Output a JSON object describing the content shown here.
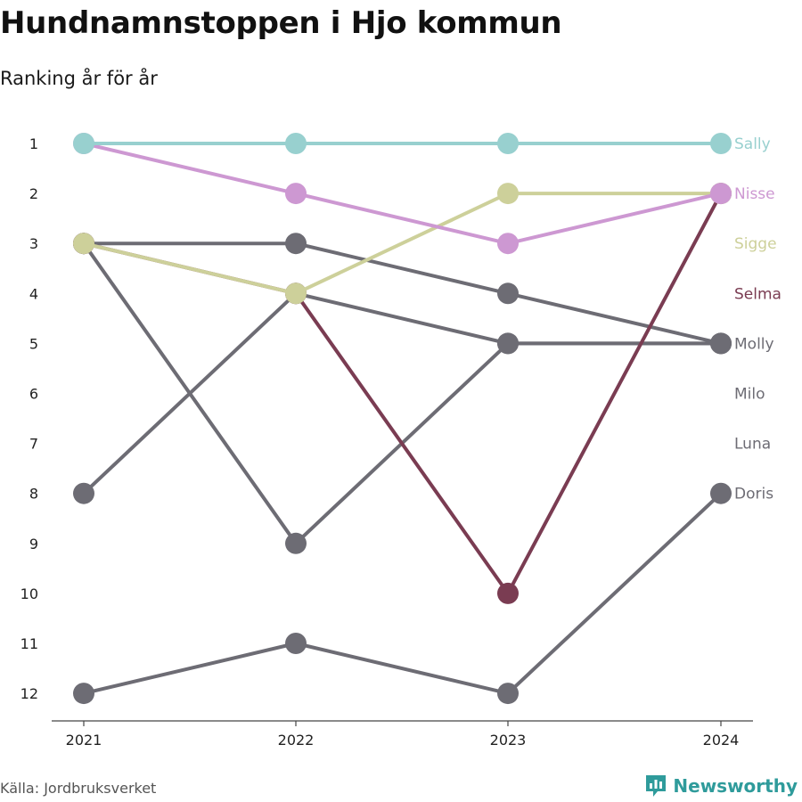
{
  "title": "Hundnamnstoppen i Hjo kommun",
  "subtitle": "Ranking år för år",
  "source": "Källa: Jordbruksverket",
  "brand": "Newsworthy",
  "brand_color": "#2f9b9b",
  "chart_data": {
    "type": "line",
    "x": [
      "2021",
      "2022",
      "2023",
      "2024"
    ],
    "ylim": [
      1,
      12
    ],
    "y_reversed": true,
    "yticks": [
      "1",
      "2",
      "3",
      "4",
      "5",
      "6",
      "7",
      "8",
      "9",
      "10",
      "11",
      "12"
    ],
    "series": [
      {
        "name": "Sally",
        "values": [
          1,
          1,
          1,
          1
        ],
        "color": "#98d0cf"
      },
      {
        "name": "Nisse",
        "values": [
          1,
          2,
          3,
          2
        ],
        "color": "#cd98d2"
      },
      {
        "name": "Sigge",
        "values": [
          3,
          4,
          2,
          2
        ],
        "color": "#cdd09a"
      },
      {
        "name": "Selma",
        "values": [
          3,
          4,
          10,
          2
        ],
        "color": "#7a3c52"
      },
      {
        "name": "Molly",
        "values": [
          3,
          3,
          4,
          5
        ],
        "color": "#6d6c74"
      },
      {
        "name": "Milo",
        "values": [
          8,
          4,
          5,
          5
        ],
        "color": "#6d6c74"
      },
      {
        "name": "Luna",
        "values": [
          3,
          9,
          5,
          5
        ],
        "color": "#6d6c74"
      },
      {
        "name": "Doris",
        "values": [
          12,
          11,
          12,
          8
        ],
        "color": "#6d6c74"
      }
    ],
    "draw_order": [
      "Luna",
      "Milo",
      "Molly",
      "Doris",
      "Selma",
      "Sigge",
      "Nisse",
      "Sally"
    ],
    "label_colors": {
      "Sally": "#98d0cf",
      "Nisse": "#cd98d2",
      "Sigge": "#cdd09a",
      "Selma": "#7a3c52",
      "Molly": "#6d6c74",
      "Milo": "#6d6c74",
      "Luna": "#6d6c74",
      "Doris": "#6d6c74"
    }
  }
}
